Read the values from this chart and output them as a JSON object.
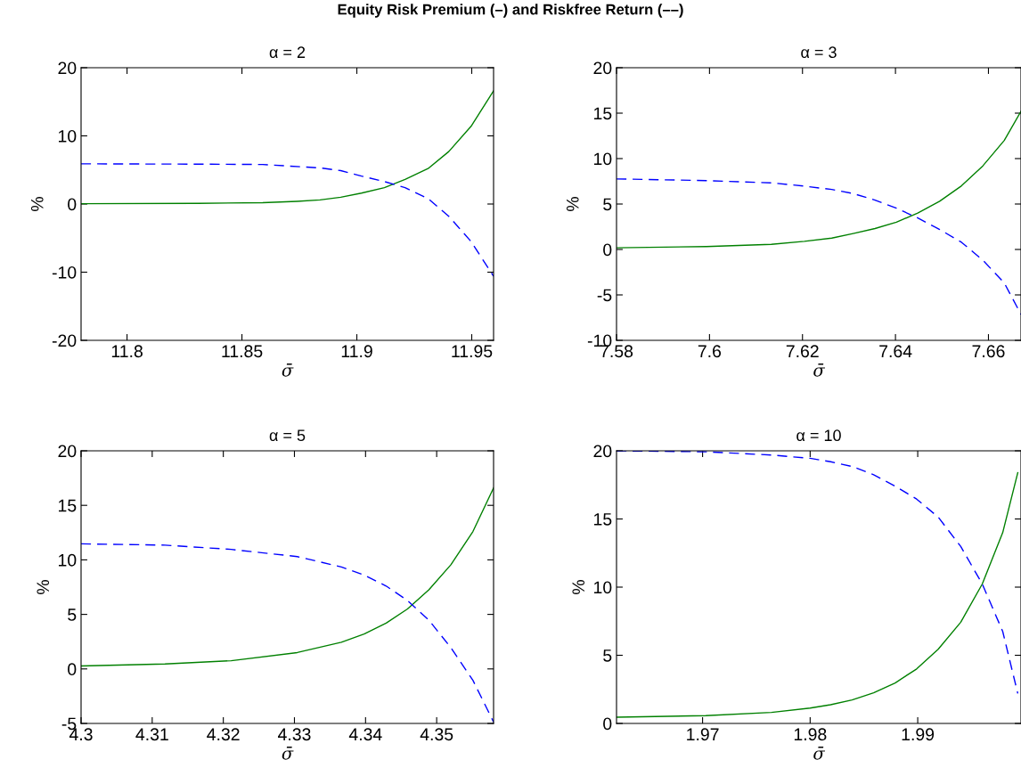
{
  "chart_data": [
    {
      "type": "line",
      "title": "α = 2",
      "xlabel": "σ̄",
      "ylabel": "%",
      "annotations": [
        "Equity Risk Premium (–) and Riskfree Return (––)"
      ],
      "grid": false,
      "xlim": [
        11.78,
        11.9595
      ],
      "ylim": [
        -20,
        20
      ],
      "xticks": [
        11.8,
        11.85,
        11.9,
        11.95
      ],
      "yticks": [
        -20,
        -10,
        0,
        10,
        20
      ],
      "series": [
        {
          "color": "#008000",
          "line_style": "solid",
          "x": [
            11.78,
            11.831,
            11.859,
            11.874,
            11.884,
            11.893,
            11.902,
            11.912,
            11.921,
            11.931,
            11.94,
            11.9497,
            11.9595
          ],
          "values": [
            0.05,
            0.1,
            0.2,
            0.4,
            0.6,
            1.0,
            1.6,
            2.4,
            3.6,
            5.2,
            7.7,
            11.4,
            16.6
          ]
        },
        {
          "color": "#0000ff",
          "line_style": "dashed",
          "x": [
            11.78,
            11.831,
            11.859,
            11.884,
            11.893,
            11.902,
            11.912,
            11.921,
            11.931,
            11.94,
            11.9497,
            11.9595
          ],
          "values": [
            5.9,
            5.85,
            5.8,
            5.3,
            4.9,
            4.1,
            3.3,
            2.4,
            0.8,
            -1.8,
            -5.5,
            -10.6
          ]
        }
      ]
    },
    {
      "type": "line",
      "title": "α = 3",
      "xlabel": "σ̄",
      "ylabel": "%",
      "grid": false,
      "xlim": [
        7.58,
        7.667
      ],
      "ylim": [
        -10,
        20
      ],
      "xticks": [
        7.58,
        7.6,
        7.62,
        7.64,
        7.66
      ],
      "yticks": [
        -10,
        -5,
        0,
        5,
        10,
        15,
        20
      ],
      "series": [
        {
          "color": "#008000",
          "line_style": "solid",
          "x": [
            7.58,
            7.5993,
            7.6133,
            7.6204,
            7.6263,
            7.6309,
            7.6356,
            7.6402,
            7.6448,
            7.6495,
            7.6542,
            7.6588,
            7.6634,
            7.667
          ],
          "values": [
            0.18,
            0.32,
            0.57,
            0.9,
            1.25,
            1.75,
            2.3,
            3.0,
            4.0,
            5.3,
            7.0,
            9.2,
            12.0,
            15.2
          ]
        },
        {
          "color": "#0000ff",
          "line_style": "dashed",
          "x": [
            7.58,
            7.5993,
            7.6133,
            7.6204,
            7.6263,
            7.6309,
            7.6356,
            7.6402,
            7.6448,
            7.6495,
            7.6542,
            7.6588,
            7.6634,
            7.667
          ],
          "values": [
            7.76,
            7.58,
            7.33,
            6.97,
            6.6,
            6.15,
            5.43,
            4.54,
            3.47,
            2.2,
            0.79,
            -1.18,
            -3.68,
            -7.15
          ]
        }
      ]
    },
    {
      "type": "line",
      "title": "α = 5",
      "xlabel": "σ̄",
      "ylabel": "%",
      "grid": false,
      "xlim": [
        4.3,
        4.358
      ],
      "ylim": [
        -5,
        20
      ],
      "xticks": [
        4.3,
        4.31,
        4.32,
        4.33,
        4.34,
        4.35
      ],
      "yticks": [
        -5,
        0,
        5,
        10,
        15,
        20
      ],
      "series": [
        {
          "color": "#008000",
          "line_style": "solid",
          "x": [
            4.3,
            4.3118,
            4.3211,
            4.3304,
            4.3366,
            4.3398,
            4.3429,
            4.3459,
            4.3489,
            4.352,
            4.3551,
            4.358
          ],
          "values": [
            0.27,
            0.45,
            0.75,
            1.5,
            2.45,
            3.2,
            4.2,
            5.5,
            7.25,
            9.55,
            12.6,
            16.6
          ]
        },
        {
          "color": "#0000ff",
          "line_style": "dashed",
          "x": [
            4.3,
            4.3118,
            4.3211,
            4.3304,
            4.3366,
            4.3398,
            4.3429,
            4.3459,
            4.3489,
            4.352,
            4.3551,
            4.358
          ],
          "values": [
            11.47,
            11.35,
            10.96,
            10.3,
            9.35,
            8.6,
            7.6,
            6.27,
            4.48,
            1.94,
            -1.05,
            -4.87
          ]
        }
      ]
    },
    {
      "type": "line",
      "title": "α = 10",
      "xlabel": "σ̄",
      "ylabel": "%",
      "grid": false,
      "xlim": [
        1.962,
        1.9996
      ],
      "ylim": [
        0,
        20
      ],
      "xticks": [
        1.97,
        1.98,
        1.99
      ],
      "yticks": [
        0,
        5,
        10,
        15,
        20
      ],
      "series": [
        {
          "color": "#008000",
          "line_style": "solid",
          "x": [
            1.962,
            1.9703,
            1.9764,
            1.98,
            1.9819,
            1.9839,
            1.9859,
            1.9879,
            1.9899,
            1.9919,
            1.994,
            1.996,
            1.9979,
            1.9993
          ],
          "values": [
            0.46,
            0.57,
            0.81,
            1.13,
            1.37,
            1.72,
            2.25,
            2.97,
            4.0,
            5.44,
            7.43,
            10.23,
            14.0,
            18.4
          ]
        },
        {
          "color": "#0000ff",
          "line_style": "dashed",
          "x": [
            1.962,
            1.9703,
            1.9764,
            1.98,
            1.9819,
            1.9839,
            1.9859,
            1.9879,
            1.9899,
            1.9919,
            1.994,
            1.996,
            1.9979,
            1.9993
          ],
          "values": [
            20.0,
            19.93,
            19.69,
            19.45,
            19.2,
            18.85,
            18.25,
            17.41,
            16.46,
            15.14,
            12.98,
            10.23,
            6.75,
            2.2
          ]
        }
      ]
    }
  ]
}
